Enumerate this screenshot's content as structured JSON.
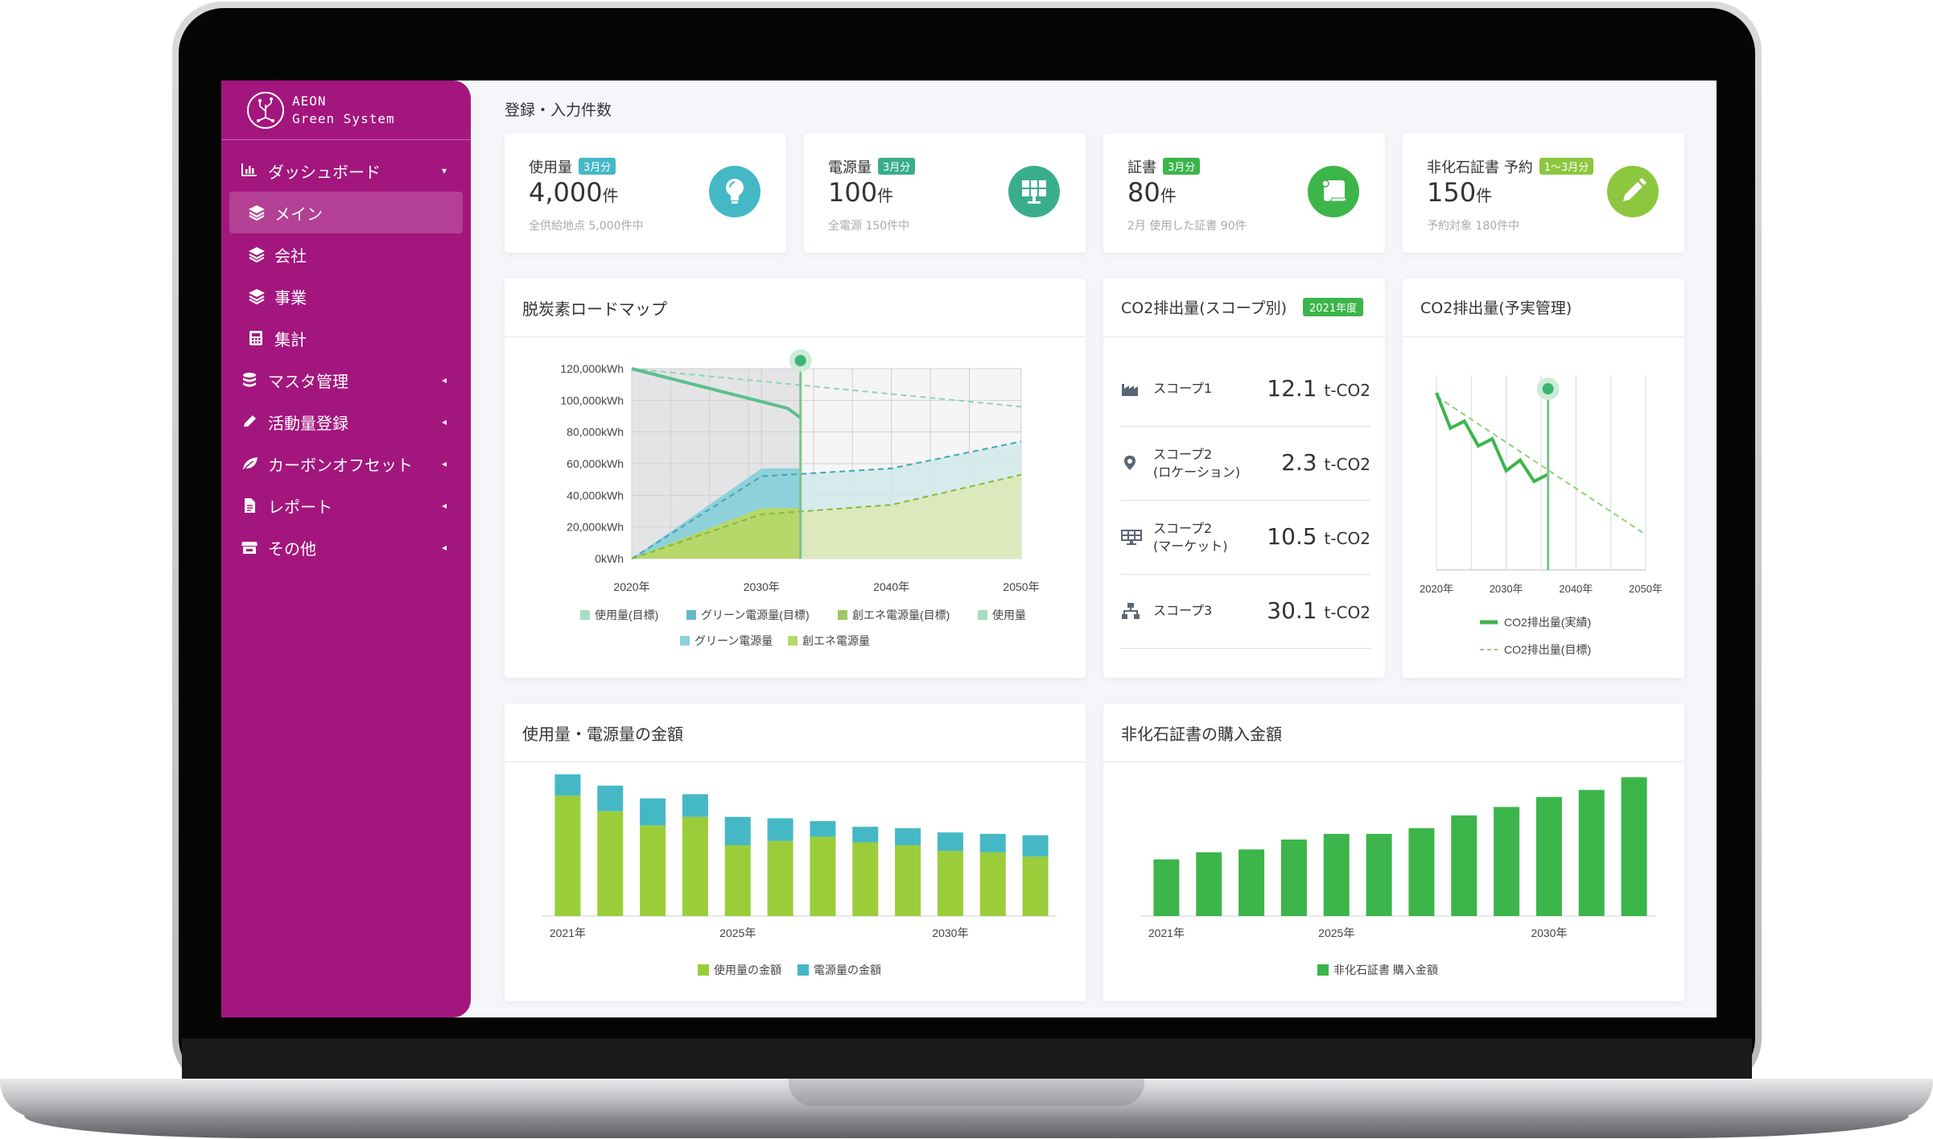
{
  "app": {
    "logo_line1": "AEON",
    "logo_line2": "Green System"
  },
  "sidebar": {
    "items": [
      {
        "label": "ダッシュボード",
        "caret": "▾"
      },
      {
        "label": "メイン"
      },
      {
        "label": "会社"
      },
      {
        "label": "事業"
      },
      {
        "label": "集計"
      },
      {
        "label": "マスタ管理",
        "caret": "◂"
      },
      {
        "label": "活動量登録",
        "caret": "◂"
      },
      {
        "label": "カーボンオフセット",
        "caret": "◂"
      },
      {
        "label": "レポート",
        "caret": "◂"
      },
      {
        "label": "その他",
        "caret": "◂"
      }
    ]
  },
  "header": {
    "section_title": "登録・入力件数"
  },
  "kpis": [
    {
      "label": "使用量",
      "badge": "3月分",
      "value": "4,000",
      "unit": "件",
      "sub": "全供給地点 5,000件中",
      "color": "#45b8c6",
      "icon": "lightbulb-icon"
    },
    {
      "label": "電源量",
      "badge": "3月分",
      "value": "100",
      "unit": "件",
      "sub": "全電源 150件中",
      "color": "#3aae8c",
      "icon": "solar-panel-icon"
    },
    {
      "label": "証書",
      "badge": "3月分",
      "value": "80",
      "unit": "件",
      "sub": "2月 使用した証書 90件",
      "color": "#3cb54a",
      "icon": "scroll-icon"
    },
    {
      "label": "非化石証書 予約",
      "badge": "1〜3月分",
      "value": "150",
      "unit": "件",
      "sub": "予約対象 180件中",
      "color": "#8dc63f",
      "icon": "pencil-icon"
    }
  ],
  "roadmap": {
    "title": "脱炭素ロードマップ"
  },
  "scopes": {
    "title": "CO2排出量(スコープ別)",
    "year_badge": "2021年度",
    "rows": [
      {
        "label1": "スコープ1",
        "label2": "",
        "value": "12.1",
        "unit": "t-CO2",
        "icon": "factory-icon"
      },
      {
        "label1": "スコープ2",
        "label2": "(ロケーション)",
        "value": "2.3",
        "unit": "t-CO2",
        "icon": "location-pin-icon"
      },
      {
        "label1": "スコープ2",
        "label2": "(マーケット)",
        "value": "10.5",
        "unit": "t-CO2",
        "icon": "solar-panel-icon"
      },
      {
        "label1": "スコープ3",
        "label2": "",
        "value": "30.1",
        "unit": "t-CO2",
        "icon": "network-icon"
      }
    ]
  },
  "budget": {
    "title": "CO2排出量(予実管理)"
  },
  "cost": {
    "title": "使用量・電源量の金額"
  },
  "cert": {
    "title": "非化石証書の購入金額"
  },
  "colors": {
    "sidebar": "#a3167e",
    "teal": "#45b8c6",
    "lime": "#9bcd3b",
    "green": "#3cb54a"
  },
  "chart_data": [
    {
      "id": "roadmap",
      "type": "area",
      "x": [
        "2020年",
        "2030年",
        "2040年",
        "2050年"
      ],
      "yticks": [
        "0kWh",
        "20,000kWh",
        "40,000kWh",
        "60,000kWh",
        "80,000kWh",
        "100,000kWh",
        "120,000kWh"
      ],
      "ylim": [
        0,
        120000
      ],
      "x_numeric": [
        2020,
        2023,
        2026,
        2029,
        2030,
        2033,
        2034,
        2037,
        2040,
        2043,
        2046,
        2050
      ],
      "series": [
        {
          "name": "使用量(目標)",
          "style": "dashed",
          "points": [
            [
              2020,
              120000
            ],
            [
              2050,
              96000
            ]
          ]
        },
        {
          "name": "グリーン電源量(目標)",
          "style": "dashed",
          "points": [
            [
              2020,
              0
            ],
            [
              2030,
              52000
            ],
            [
              2040,
              57000
            ],
            [
              2050,
              74000
            ]
          ]
        },
        {
          "name": "創エネ電源量(目標)",
          "style": "dashed",
          "points": [
            [
              2020,
              0
            ],
            [
              2030,
              28000
            ],
            [
              2040,
              34000
            ],
            [
              2050,
              53000
            ]
          ]
        },
        {
          "name": "使用量",
          "style": "solid",
          "points": [
            [
              2020,
              120000
            ],
            [
              2032,
              95000
            ],
            [
              2033,
              89000
            ]
          ]
        },
        {
          "name": "グリーン電源量",
          "style": "area",
          "points": [
            [
              2020,
              0
            ],
            [
              2030,
              57000
            ],
            [
              2033,
              57000
            ]
          ]
        },
        {
          "name": "創エネ電源量",
          "style": "area",
          "points": [
            [
              2020,
              0
            ],
            [
              2030,
              32000
            ],
            [
              2033,
              32000
            ]
          ]
        }
      ],
      "legend_row1": [
        "使用量(目標)",
        "グリーン電源量(目標)",
        "創エネ電源量(目標)",
        "使用量"
      ],
      "legend_row2": [
        "グリーン電源量",
        "創エネ電源量"
      ]
    },
    {
      "id": "co2budget",
      "type": "line",
      "x": [
        "2020年",
        "2030年",
        "2040年",
        "2050年"
      ],
      "series": [
        {
          "name": "CO2排出量(実績)",
          "style": "solid",
          "points": [
            [
              2020,
              100
            ],
            [
              2022,
              80
            ],
            [
              2024,
              84
            ],
            [
              2026,
              70
            ],
            [
              2028,
              74
            ],
            [
              2030,
              56
            ],
            [
              2032,
              62
            ],
            [
              2034,
              50
            ],
            [
              2036,
              54
            ]
          ]
        },
        {
          "name": "CO2排出量(目標)",
          "style": "dashed",
          "points": [
            [
              2020,
              98
            ],
            [
              2050,
              20
            ]
          ]
        }
      ]
    },
    {
      "id": "cost",
      "type": "bar",
      "categories": [
        "2021年",
        "",
        "",
        "",
        "2025年",
        "",
        "",
        "",
        "",
        "2030年",
        "",
        ""
      ],
      "xlabels": [
        "2021年",
        "2025年",
        "2030年"
      ],
      "series": [
        {
          "name": "使用量の金額",
          "values": [
            85,
            74,
            64,
            70,
            50,
            53,
            56,
            52,
            50,
            46,
            45,
            42
          ]
        },
        {
          "name": "電源量の金額",
          "values": [
            15,
            18,
            19,
            16,
            20,
            16,
            11,
            11,
            12,
            13,
            13,
            15
          ]
        }
      ],
      "ylim": [
        0,
        100
      ]
    },
    {
      "id": "cert",
      "type": "bar",
      "categories": [
        "2021年",
        "",
        "",
        "",
        "2025年",
        "",
        "",
        "",
        "",
        "2030年",
        "",
        ""
      ],
      "xlabels": [
        "2021年",
        "2025年",
        "2030年"
      ],
      "series": [
        {
          "name": "非化石証書 購入金額",
          "values": [
            40,
            45,
            47,
            54,
            58,
            58,
            62,
            71,
            77,
            84,
            89,
            98
          ]
        }
      ],
      "ylim": [
        0,
        100
      ]
    }
  ]
}
